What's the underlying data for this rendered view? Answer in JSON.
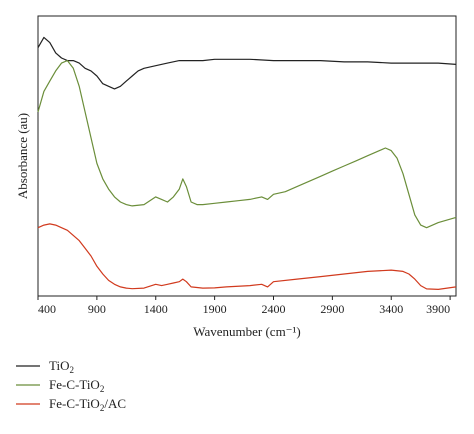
{
  "chart_data": {
    "type": "line",
    "title": "",
    "xlabel": "Wavenumber (cm⁻¹)",
    "ylabel": "Absorbance (au)",
    "xlim": [
      400,
      3950
    ],
    "x_ticks": [
      400,
      900,
      1400,
      1900,
      2400,
      2900,
      3400,
      3900
    ],
    "y_ticks_visible": false,
    "grid": false,
    "legend_position": "bottom-left",
    "series": [
      {
        "name": "TiO₂",
        "legend_main": "TiO",
        "legend_sub": "2",
        "legend_tail": "",
        "color": "#222222",
        "x": [
          400,
          450,
          500,
          550,
          600,
          650,
          700,
          750,
          800,
          850,
          900,
          950,
          1000,
          1050,
          1100,
          1150,
          1200,
          1250,
          1300,
          1400,
          1500,
          1600,
          1700,
          1800,
          1900,
          2000,
          2200,
          2400,
          2600,
          2800,
          3000,
          3200,
          3400,
          3600,
          3800,
          3950
        ],
        "y": [
          0.95,
          0.99,
          0.97,
          0.93,
          0.91,
          0.9,
          0.9,
          0.89,
          0.87,
          0.86,
          0.84,
          0.81,
          0.8,
          0.79,
          0.8,
          0.82,
          0.84,
          0.86,
          0.87,
          0.88,
          0.89,
          0.9,
          0.9,
          0.9,
          0.905,
          0.905,
          0.905,
          0.9,
          0.9,
          0.9,
          0.895,
          0.895,
          0.89,
          0.89,
          0.89,
          0.885
        ]
      },
      {
        "name": "Fe-C-TiO₂",
        "legend_main": "Fe-C-TiO",
        "legend_sub": "2",
        "legend_tail": "",
        "color": "#6b8e3a",
        "x": [
          400,
          450,
          500,
          550,
          600,
          650,
          700,
          750,
          800,
          850,
          900,
          950,
          1000,
          1050,
          1100,
          1150,
          1200,
          1300,
          1400,
          1450,
          1500,
          1550,
          1600,
          1630,
          1660,
          1700,
          1750,
          1800,
          1900,
          2000,
          2100,
          2200,
          2300,
          2350,
          2400,
          2500,
          2600,
          2700,
          2800,
          2900,
          3000,
          3100,
          3200,
          3300,
          3350,
          3400,
          3450,
          3500,
          3550,
          3600,
          3650,
          3700,
          3800,
          3950
        ],
        "y": [
          0.7,
          0.78,
          0.82,
          0.86,
          0.89,
          0.9,
          0.87,
          0.8,
          0.7,
          0.6,
          0.5,
          0.44,
          0.4,
          0.37,
          0.35,
          0.34,
          0.335,
          0.34,
          0.37,
          0.36,
          0.35,
          0.37,
          0.4,
          0.44,
          0.41,
          0.35,
          0.34,
          0.34,
          0.345,
          0.35,
          0.355,
          0.36,
          0.37,
          0.36,
          0.38,
          0.39,
          0.41,
          0.43,
          0.45,
          0.47,
          0.49,
          0.51,
          0.53,
          0.55,
          0.56,
          0.55,
          0.52,
          0.46,
          0.38,
          0.3,
          0.26,
          0.25,
          0.27,
          0.29
        ]
      },
      {
        "name": "Fe-C-TiO₂/AC",
        "legend_main": "Fe-C-TiO",
        "legend_sub": "2",
        "legend_tail": "/AC",
        "color": "#d13a1e",
        "x": [
          400,
          450,
          500,
          550,
          600,
          650,
          700,
          750,
          800,
          850,
          900,
          950,
          1000,
          1050,
          1100,
          1150,
          1200,
          1300,
          1400,
          1450,
          1500,
          1550,
          1600,
          1630,
          1660,
          1700,
          1800,
          1900,
          2000,
          2200,
          2300,
          2350,
          2400,
          2600,
          2800,
          3000,
          3200,
          3400,
          3500,
          3550,
          3600,
          3650,
          3700,
          3800,
          3950
        ],
        "y": [
          0.25,
          0.26,
          0.265,
          0.26,
          0.25,
          0.24,
          0.22,
          0.2,
          0.17,
          0.14,
          0.1,
          0.07,
          0.045,
          0.03,
          0.02,
          0.015,
          0.013,
          0.015,
          0.03,
          0.025,
          0.03,
          0.035,
          0.04,
          0.05,
          0.04,
          0.02,
          0.015,
          0.016,
          0.02,
          0.025,
          0.03,
          0.02,
          0.04,
          0.05,
          0.06,
          0.07,
          0.08,
          0.085,
          0.08,
          0.07,
          0.05,
          0.025,
          0.012,
          0.01,
          0.02
        ]
      }
    ]
  }
}
